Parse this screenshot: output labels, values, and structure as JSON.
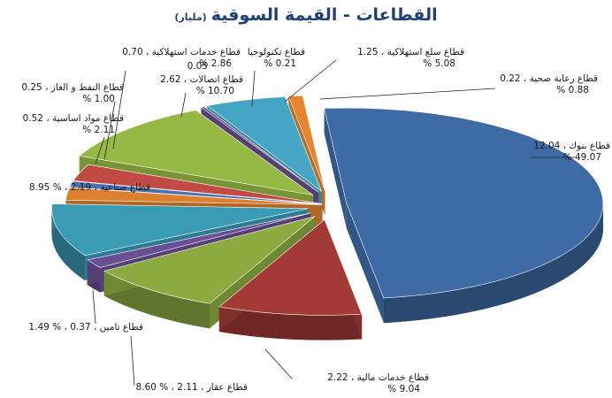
{
  "chart_data": {
    "type": "pie",
    "title": "القطاعات - القيمة السوقية",
    "subtitle": "(مليار)",
    "slices": [
      {
        "label": "قطاع بنوك",
        "value_text": "12.04",
        "pct_text": "49.07",
        "value": 12.04,
        "pct": 49.07,
        "color": "#3e6ba6",
        "exploded": true
      },
      {
        "label": "قطاع خدمات مالية",
        "value_text": "2.22",
        "pct_text": "9.04",
        "value": 2.22,
        "pct": 9.04,
        "color": "#a33a36",
        "exploded": true
      },
      {
        "label": "قطاع عقار",
        "value_text": "2.11",
        "pct_text": "8.60",
        "value": 2.11,
        "pct": 8.6,
        "color": "#8bab40",
        "exploded": true
      },
      {
        "label": "قطاع تامين",
        "value_text": "0.37",
        "pct_text": "1.49",
        "value": 0.37,
        "pct": 1.49,
        "color": "#6b4f95",
        "exploded": true
      },
      {
        "label": "قطاع صناعية",
        "value_text": "2.19",
        "pct_text": "8.95",
        "value": 2.19,
        "pct": 8.95,
        "color": "#3a9bb5",
        "exploded": true
      },
      {
        "label": "قطاع مواد اساسية",
        "value_text": "0.52",
        "pct_text": "2.11",
        "value": 0.52,
        "pct": 2.11,
        "color": "#dc7f2e",
        "exploded": false
      },
      {
        "label": "قطاع النفط و الغاز",
        "value_text": "0.25",
        "pct_text": "1.00",
        "value": 0.25,
        "pct": 1.0,
        "color": "#4a72b5",
        "exploded": false
      },
      {
        "label": "قطاع خدمات استهلاكية",
        "value_text": "0.70",
        "pct_text": "2.86",
        "value": 0.7,
        "pct": 2.86,
        "color": "#c24a45",
        "exploded": false
      },
      {
        "label": "قطاع اتصالات",
        "value_text": "2.62",
        "pct_text": "10.70",
        "value": 2.62,
        "pct": 10.7,
        "color": "#96b945",
        "exploded": true
      },
      {
        "label": "",
        "value_text": "0.05",
        "pct_text": "",
        "value": 0.05,
        "pct": 0.21,
        "color": "#6a4f91",
        "exploded": true
      },
      {
        "label": "قطاع تكنولوجيا",
        "value_text": "",
        "pct_text": "0.21",
        "value": 0.05,
        "pct": 0.21,
        "color": "#6a4f91",
        "exploded": true
      },
      {
        "label": "قطاع سلع استهلاكية",
        "value_text": "1.25",
        "pct_text": "5.08",
        "value": 1.25,
        "pct": 5.08,
        "color": "#44a6c4",
        "exploded": true
      },
      {
        "label": "قطاع رعاية صحية",
        "value_text": "0.22",
        "pct_text": "0.88",
        "value": 0.22,
        "pct": 0.88,
        "color": "#e6852f",
        "exploded": true
      }
    ]
  }
}
